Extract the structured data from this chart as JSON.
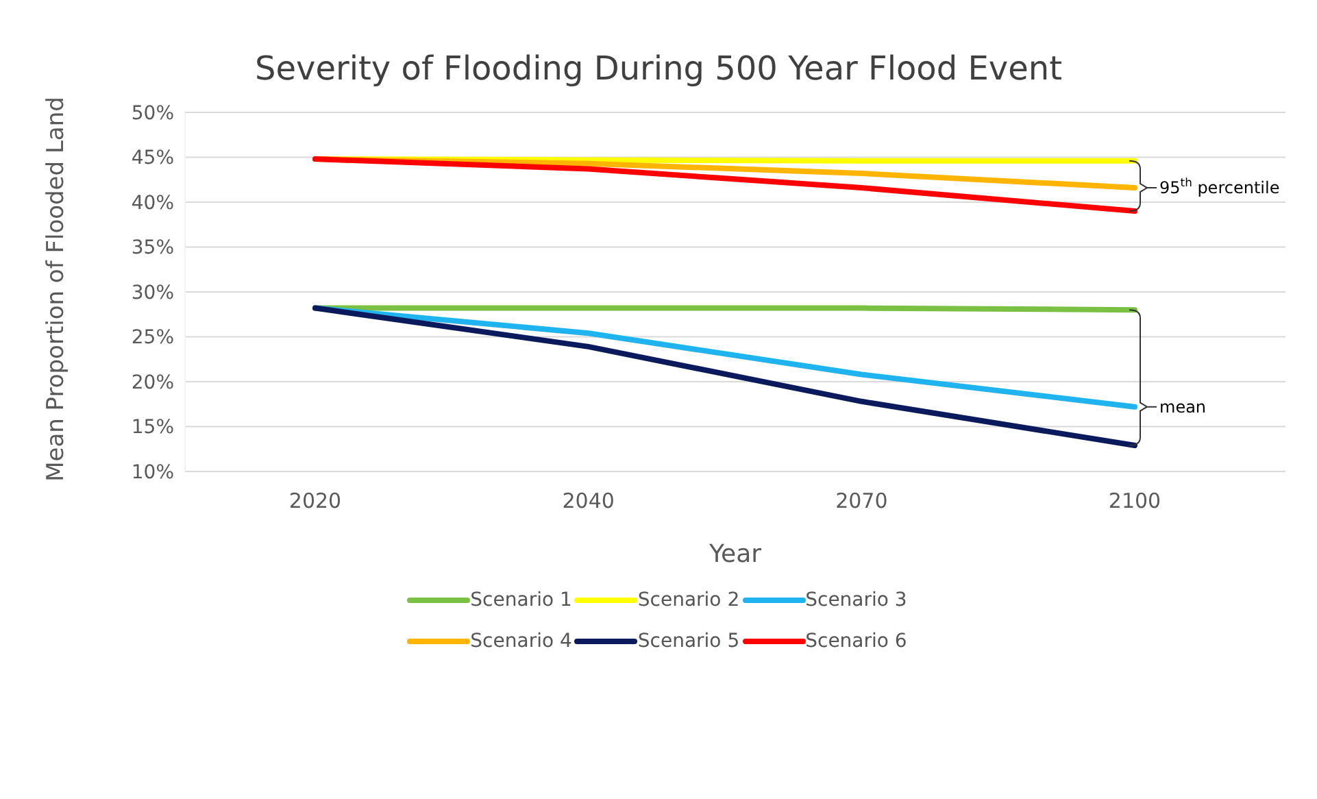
{
  "chart_data": {
    "type": "line",
    "title": "Severity of Flooding During 500 Year Flood Event",
    "xlabel": "Year",
    "ylabel": "Mean Proportion of Flooded Land",
    "categories": [
      "2020",
      "2040",
      "2070",
      "2100"
    ],
    "series": [
      {
        "name": "Scenario 1",
        "color": "#7ac143",
        "values": [
          28.2,
          28.2,
          28.2,
          28.0
        ]
      },
      {
        "name": "Scenario 2",
        "color": "#ffff00",
        "values": [
          44.8,
          44.7,
          44.6,
          44.6
        ]
      },
      {
        "name": "Scenario 3",
        "color": "#1fb4f0",
        "values": [
          28.2,
          25.4,
          20.8,
          17.2
        ]
      },
      {
        "name": "Scenario 4",
        "color": "#ffb400",
        "values": [
          44.8,
          44.3,
          43.2,
          41.6
        ]
      },
      {
        "name": "Scenario 5",
        "color": "#0a1a5c",
        "values": [
          28.2,
          23.9,
          17.8,
          12.9
        ]
      },
      {
        "name": "Scenario 6",
        "color": "#ff0000",
        "values": [
          44.8,
          43.7,
          41.6,
          39.0
        ]
      }
    ],
    "ylim": [
      10,
      50
    ],
    "yticks": [
      {
        "value": 10,
        "label": "10%"
      },
      {
        "value": 15,
        "label": "15%"
      },
      {
        "value": 20,
        "label": "20%"
      },
      {
        "value": 25,
        "label": "25%"
      },
      {
        "value": 30,
        "label": "30%"
      },
      {
        "value": 35,
        "label": "35%"
      },
      {
        "value": 40,
        "label": "40%"
      },
      {
        "value": 45,
        "label": "45%"
      },
      {
        "value": 50,
        "label": "50%"
      }
    ],
    "grid": "y",
    "legend": "bottom",
    "marker": "none",
    "line_style": "solid",
    "annotations": [
      {
        "text": "95$^{th}$ percentile",
        "x": "2100",
        "y": 41.6
      },
      {
        "text": "mean",
        "x": "2100",
        "y": 17.2
      }
    ]
  }
}
